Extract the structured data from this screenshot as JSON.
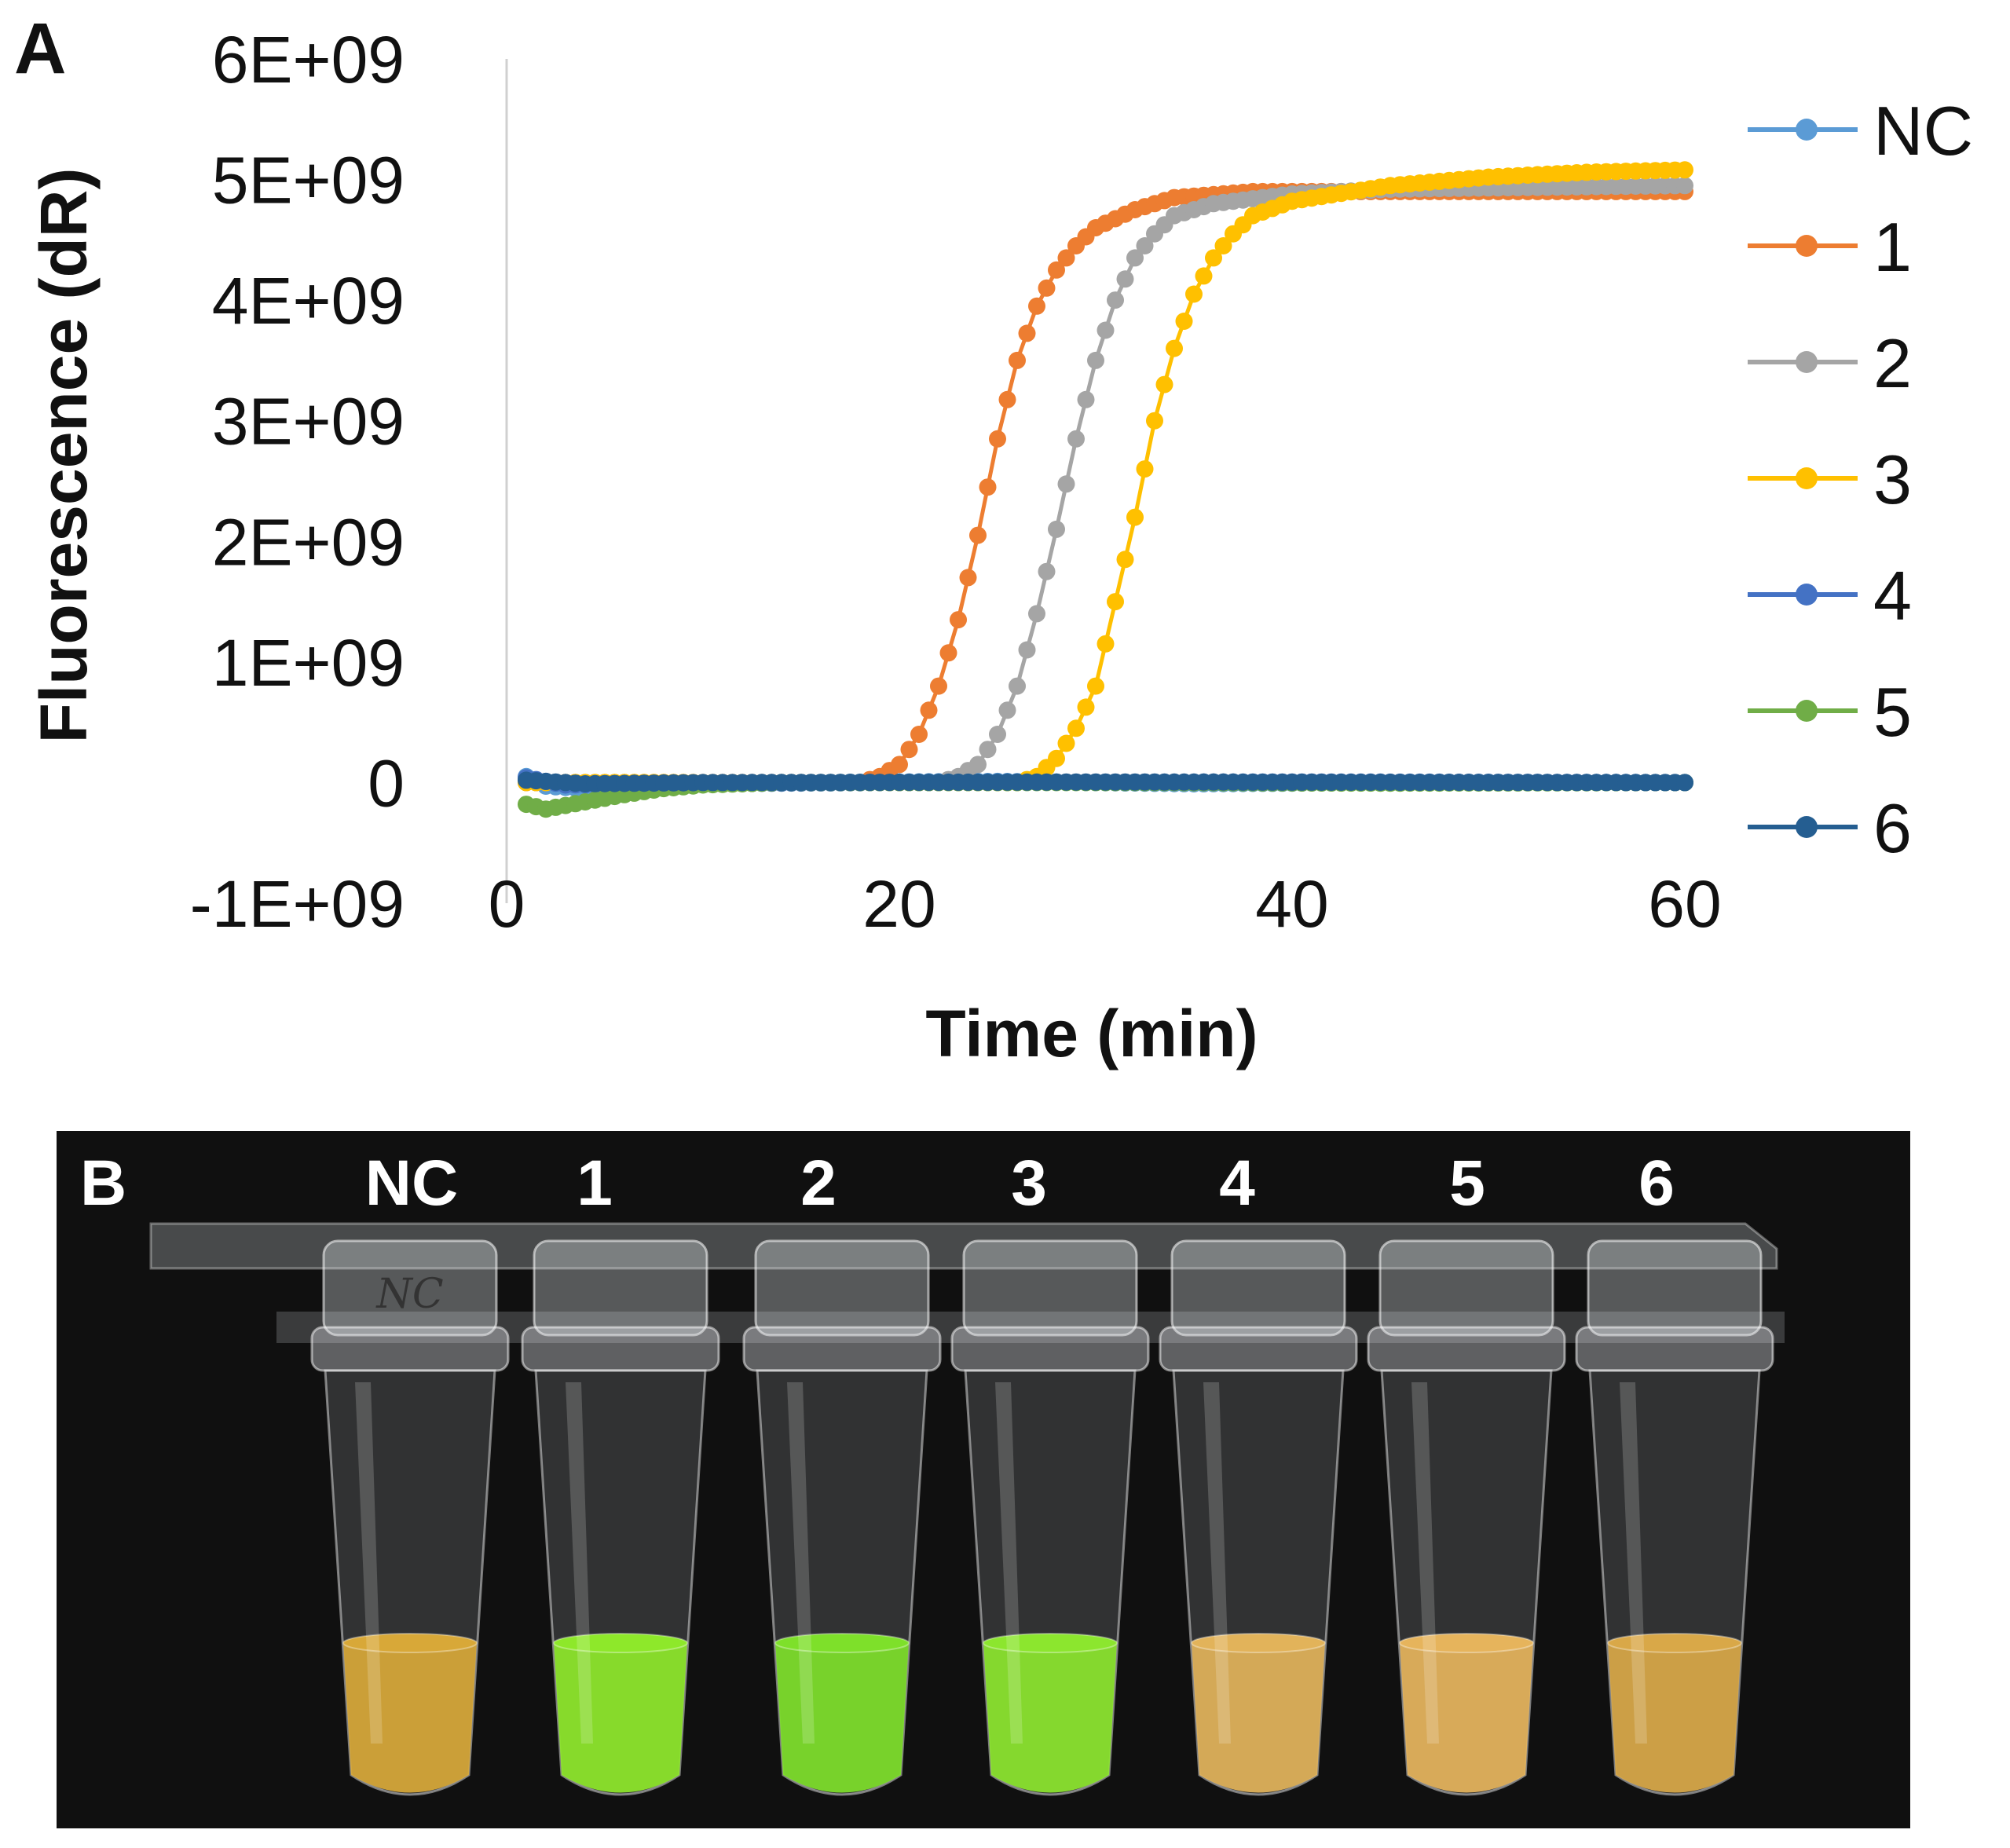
{
  "panel_a_label": "A",
  "panel_b_label": "B",
  "chart_data": {
    "type": "line",
    "xlabel": "Time (min)",
    "ylabel": "Fluorescence (dR)",
    "xlim": [
      0,
      60
    ],
    "ylim": [
      -1000000000,
      6000000000
    ],
    "x_ticks": [
      "0",
      "20",
      "40",
      "60"
    ],
    "y_ticks": [
      "6E+09",
      "5E+09",
      "4E+09",
      "3E+09",
      "2E+09",
      "1E+09",
      "0",
      "-1E+09"
    ],
    "legend_position": "right",
    "grid": false,
    "series": [
      {
        "name": "NC",
        "color": "#5B9BD5",
        "points": [
          [
            1,
            50000000.0
          ],
          [
            2,
            -30000000.0
          ],
          [
            4,
            -50000000.0
          ],
          [
            8,
            -20000000.0
          ],
          [
            15,
            0
          ],
          [
            25,
            10000000.0
          ],
          [
            35,
            -10000000.0
          ],
          [
            45,
            0
          ],
          [
            60,
            0
          ]
        ]
      },
      {
        "name": "1",
        "color": "#ED7D31",
        "points": [
          [
            1,
            0
          ],
          [
            18,
            0
          ],
          [
            19,
            50000000.0
          ],
          [
            20,
            150000000.0
          ],
          [
            21,
            400000000.0
          ],
          [
            22,
            800000000.0
          ],
          [
            23,
            1350000000.0
          ],
          [
            24,
            2050000000.0
          ],
          [
            25,
            2850000000.0
          ],
          [
            26,
            3500000000.0
          ],
          [
            27,
            3950000000.0
          ],
          [
            28,
            4250000000.0
          ],
          [
            29,
            4450000000.0
          ],
          [
            30,
            4600000000.0
          ],
          [
            32,
            4750000000.0
          ],
          [
            34,
            4850000000.0
          ],
          [
            38,
            4900000000.0
          ],
          [
            45,
            4900000000.0
          ],
          [
            60,
            4900000000.0
          ]
        ]
      },
      {
        "name": "2",
        "color": "#A5A5A5",
        "points": [
          [
            1,
            0
          ],
          [
            22,
            0
          ],
          [
            23,
            50000000.0
          ],
          [
            24,
            150000000.0
          ],
          [
            25,
            400000000.0
          ],
          [
            26,
            800000000.0
          ],
          [
            27,
            1400000000.0
          ],
          [
            28,
            2100000000.0
          ],
          [
            29,
            2850000000.0
          ],
          [
            30,
            3500000000.0
          ],
          [
            31,
            4000000000.0
          ],
          [
            32,
            4350000000.0
          ],
          [
            33,
            4550000000.0
          ],
          [
            34,
            4700000000.0
          ],
          [
            36,
            4800000000.0
          ],
          [
            40,
            4880000000.0
          ],
          [
            45,
            4920000000.0
          ],
          [
            60,
            4950000000.0
          ]
        ]
      },
      {
        "name": "3",
        "color": "#FFC000",
        "points": [
          [
            1,
            0
          ],
          [
            26,
            0
          ],
          [
            27,
            50000000.0
          ],
          [
            28,
            200000000.0
          ],
          [
            29,
            450000000.0
          ],
          [
            30,
            800000000.0
          ],
          [
            31,
            1500000000.0
          ],
          [
            32,
            2200000000.0
          ],
          [
            33,
            3000000000.0
          ],
          [
            34,
            3600000000.0
          ],
          [
            35,
            4050000000.0
          ],
          [
            36,
            4350000000.0
          ],
          [
            37,
            4550000000.0
          ],
          [
            38,
            4700000000.0
          ],
          [
            40,
            4820000000.0
          ],
          [
            45,
            4950000000.0
          ],
          [
            50,
            5020000000.0
          ],
          [
            55,
            5060000000.0
          ],
          [
            60,
            5080000000.0
          ]
        ]
      },
      {
        "name": "4",
        "color": "#4472C4",
        "points": [
          [
            1,
            40000000.0
          ],
          [
            3,
            -20000000.0
          ],
          [
            8,
            -10000000.0
          ],
          [
            20,
            0
          ],
          [
            40,
            5000000.0
          ],
          [
            60,
            0
          ]
        ]
      },
      {
        "name": "5",
        "color": "#70AD47",
        "points": [
          [
            1,
            -180000000.0
          ],
          [
            2,
            -220000000.0
          ],
          [
            4,
            -160000000.0
          ],
          [
            6,
            -100000000.0
          ],
          [
            8,
            -50000000.0
          ],
          [
            10,
            -20000000.0
          ],
          [
            14,
            0
          ],
          [
            30,
            0
          ],
          [
            45,
            -5000000.0
          ],
          [
            60,
            0
          ]
        ]
      },
      {
        "name": "6",
        "color": "#255E91",
        "points": [
          [
            1,
            20000000.0
          ],
          [
            4,
            -10000000.0
          ],
          [
            10,
            0
          ],
          [
            30,
            5000000.0
          ],
          [
            60,
            0
          ]
        ]
      }
    ]
  },
  "photo": {
    "tube_labels": [
      "NC",
      "1",
      "2",
      "3",
      "4",
      "5",
      "6"
    ],
    "tube_handwriting": "NC",
    "liquid_colors": [
      "#D8A838",
      "#8EE82A",
      "#7EE02A",
      "#8CE62E",
      "#E2B35A",
      "#E6B45C",
      "#D9A848"
    ]
  }
}
